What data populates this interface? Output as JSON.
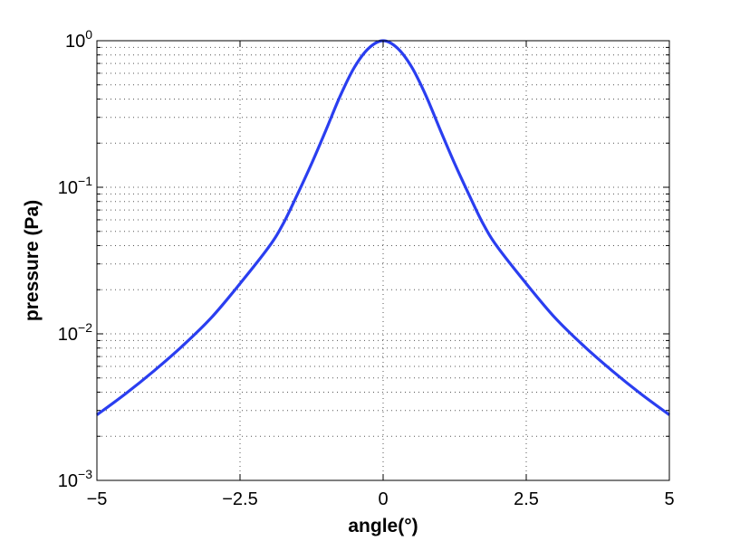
{
  "chart_data": {
    "type": "line",
    "xlabel": "angle(°)",
    "ylabel": "pressure (Pa)",
    "xlim": [
      -5,
      5
    ],
    "ylim": [
      0.001,
      1
    ],
    "yscale": "log",
    "grid": true,
    "x_ticks": [
      -5,
      -2.5,
      0,
      2.5,
      5
    ],
    "x_tick_labels": [
      "−5",
      "−2.5",
      "0",
      "2.5",
      "5"
    ],
    "y_ticks": [
      0.001,
      0.01,
      0.1,
      1
    ],
    "y_tick_labels": [
      {
        "base": "10",
        "exp": "−3"
      },
      {
        "base": "10",
        "exp": "−2"
      },
      {
        "base": "10",
        "exp": "−1"
      },
      {
        "base": "10",
        "exp": "0"
      }
    ],
    "colors": {
      "line": "#2a3ef0",
      "grid": "#555555",
      "axes": "#000000"
    },
    "series": [
      {
        "x": [
          -5,
          -4.5,
          -4,
          -3.5,
          -3,
          -2.5,
          -2,
          -1.75,
          -1.5,
          -1.25,
          -1,
          -0.75,
          -0.5,
          -0.25,
          0,
          0.25,
          0.5,
          0.75,
          1,
          1.25,
          1.5,
          1.75,
          2,
          2.5,
          3,
          3.5,
          4,
          4.5,
          5
        ],
        "y": [
          0.0028,
          0.0039,
          0.0056,
          0.0083,
          0.0129,
          0.022,
          0.039,
          0.056,
          0.089,
          0.145,
          0.245,
          0.42,
          0.66,
          0.89,
          1.0,
          0.89,
          0.66,
          0.42,
          0.245,
          0.145,
          0.089,
          0.056,
          0.039,
          0.022,
          0.0129,
          0.0083,
          0.0056,
          0.0039,
          0.0028
        ]
      }
    ]
  }
}
